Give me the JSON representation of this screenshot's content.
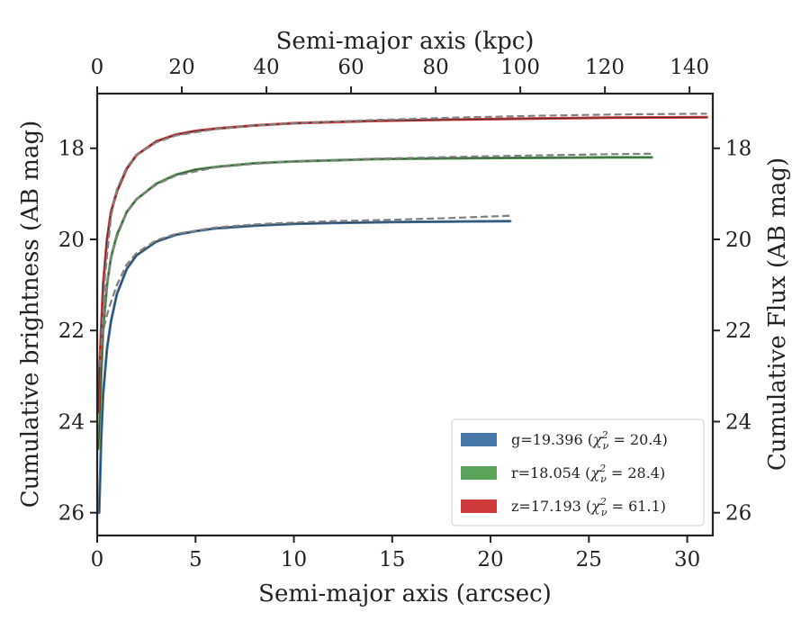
{
  "chart_data": {
    "type": "line",
    "xlabel": "Semi-major axis (arcsec)",
    "x2label": "Semi-major axis (kpc)",
    "ylabel": "Cumulative brightness (AB mag)",
    "y2label": "Cumulative Flux (AB mag)",
    "xlim": [
      0,
      31.3
    ],
    "x2lim": [
      0,
      145.5
    ],
    "ylim": [
      26.5,
      16.8
    ],
    "y_inverted": true,
    "x_ticks": [
      0,
      5,
      10,
      15,
      20,
      25,
      30
    ],
    "x_tick_labels": [
      "0",
      "5",
      "10",
      "15",
      "20",
      "25",
      "30"
    ],
    "x2_ticks": [
      0,
      20,
      40,
      60,
      80,
      100,
      120,
      140
    ],
    "x2_tick_labels": [
      "0",
      "20",
      "40",
      "60",
      "80",
      "100",
      "120",
      "140"
    ],
    "y_ticks": [
      18,
      20,
      22,
      24,
      26
    ],
    "y_tick_labels": [
      "18",
      "20",
      "22",
      "24",
      "26"
    ],
    "y2_ticks": [
      18,
      20,
      22,
      24,
      26
    ],
    "y2_tick_labels": [
      "18",
      "20",
      "22",
      "24",
      "26"
    ],
    "grid": false,
    "legend_position": "lower-right",
    "legend": [
      {
        "name": "g",
        "label_main": "g=19.396 (",
        "chi_value": " = 20.4)"
      },
      {
        "name": "r",
        "label_main": "r=18.054 (",
        "chi_value": " = 28.4)"
      },
      {
        "name": "z",
        "label_main": "z=17.193 (",
        "chi_value": " = 61.1)"
      }
    ],
    "series": [
      {
        "name": "g",
        "color": "#4878a8",
        "x": [
          0.1,
          0.2,
          0.3,
          0.5,
          0.7,
          1.0,
          1.5,
          2.0,
          3.0,
          4.0,
          5.0,
          6.0,
          8.0,
          10.0,
          12.0,
          15.0,
          18.0,
          21.0
        ],
        "y": [
          26.0,
          24.4,
          23.4,
          22.4,
          21.8,
          21.2,
          20.65,
          20.35,
          20.05,
          19.9,
          19.82,
          19.76,
          19.7,
          19.66,
          19.64,
          19.62,
          19.61,
          19.6
        ],
        "model_x": [
          0.15,
          0.3,
          0.6,
          1.0,
          1.5,
          2.0,
          3.0,
          4.0,
          6.0,
          8.0,
          10.0,
          12.0,
          15.0,
          18.0,
          21.0
        ],
        "model_y": [
          22.4,
          22.0,
          21.5,
          21.0,
          20.55,
          20.3,
          20.02,
          19.88,
          19.74,
          19.67,
          19.63,
          19.6,
          19.57,
          19.53,
          19.48
        ]
      },
      {
        "name": "r",
        "color": "#5aa358",
        "x": [
          0.05,
          0.1,
          0.2,
          0.3,
          0.5,
          0.7,
          1.0,
          1.5,
          2.0,
          3.0,
          4.0,
          5.0,
          6.0,
          8.0,
          10.0,
          14.0,
          18.0,
          22.0,
          26.0,
          28.2
        ],
        "y": [
          24.6,
          24.3,
          23.0,
          22.0,
          21.0,
          20.4,
          19.9,
          19.4,
          19.12,
          18.78,
          18.58,
          18.47,
          18.41,
          18.33,
          18.29,
          18.24,
          18.22,
          18.21,
          18.2,
          18.2
        ],
        "model_x": [
          0.15,
          0.4,
          0.7,
          1.0,
          1.5,
          2.0,
          3.0,
          4.0,
          6.0,
          8.0,
          10.0,
          14.0,
          18.0,
          22.0,
          26.0,
          28.2
        ],
        "model_y": [
          22.6,
          21.3,
          20.4,
          19.95,
          19.4,
          19.12,
          18.8,
          18.6,
          18.42,
          18.34,
          18.29,
          18.23,
          18.19,
          18.16,
          18.13,
          18.12
        ]
      },
      {
        "name": "z",
        "color": "#d13a3a",
        "x": [
          0.05,
          0.1,
          0.2,
          0.3,
          0.5,
          0.7,
          1.0,
          1.5,
          2.0,
          3.0,
          4.0,
          5.0,
          6.0,
          8.0,
          10.0,
          14.0,
          18.0,
          22.0,
          26.0,
          31.0
        ],
        "y": [
          23.8,
          23.0,
          22.0,
          21.0,
          20.0,
          19.4,
          18.95,
          18.45,
          18.15,
          17.85,
          17.7,
          17.62,
          17.57,
          17.5,
          17.45,
          17.4,
          17.37,
          17.35,
          17.33,
          17.32
        ],
        "model_x": [
          0.15,
          0.4,
          0.7,
          1.0,
          1.5,
          2.0,
          3.0,
          4.0,
          6.0,
          8.0,
          10.0,
          14.0,
          18.0,
          22.0,
          26.0,
          31.0
        ],
        "model_y": [
          22.8,
          20.8,
          19.5,
          18.9,
          18.42,
          18.15,
          17.87,
          17.72,
          17.58,
          17.5,
          17.45,
          17.38,
          17.33,
          17.29,
          17.26,
          17.24
        ]
      }
    ]
  }
}
